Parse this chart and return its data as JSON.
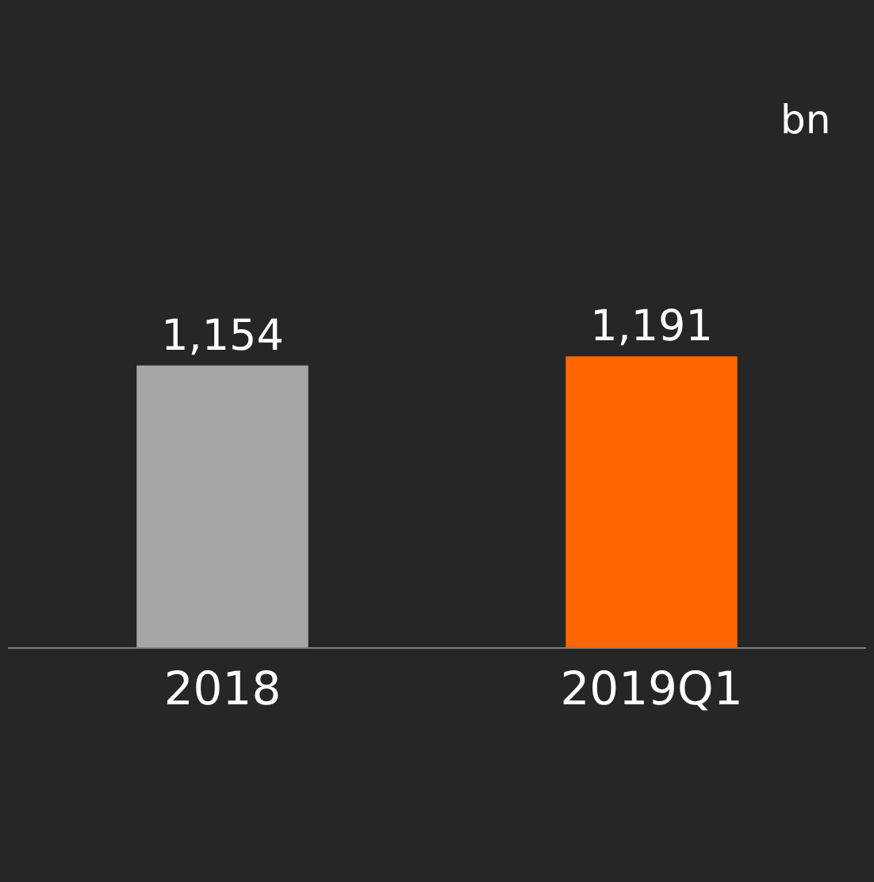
{
  "chart_data": {
    "type": "bar",
    "categories": [
      "2018",
      "2019Q1"
    ],
    "values": [
      1154,
      1191
    ],
    "colors": [
      "#a6a6a6",
      "#ff6600"
    ],
    "data_labels": true,
    "value_labels": [
      "1,154",
      "1,191"
    ],
    "tick_labels": "x",
    "annotations": [
      "bn"
    ]
  }
}
